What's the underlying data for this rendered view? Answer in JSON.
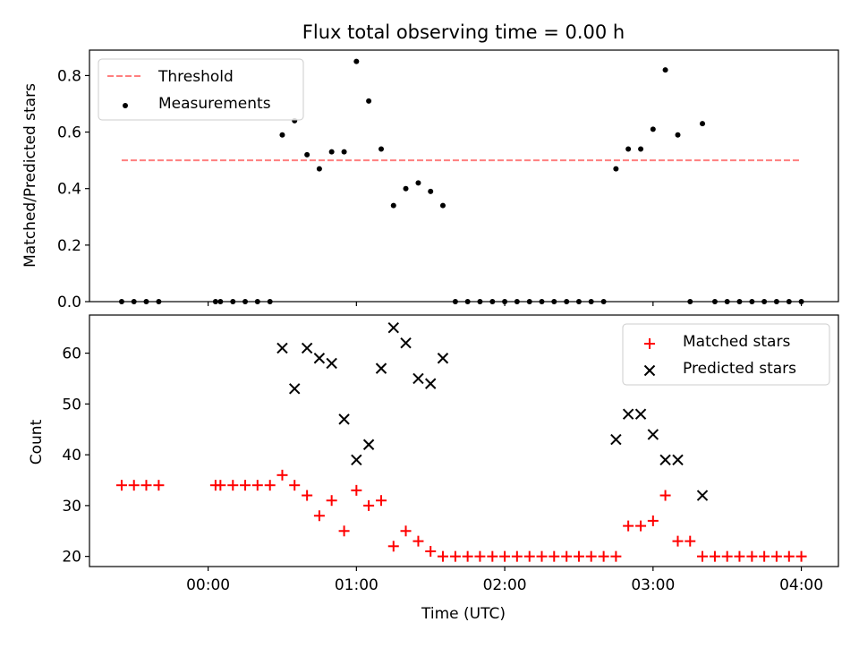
{
  "figure": {
    "title": "Flux total observing time = 0.00 h",
    "xlabel": "Time (UTC)",
    "x_ticks": [
      {
        "value": 0,
        "label": "00:00"
      },
      {
        "value": 1,
        "label": "01:00"
      },
      {
        "value": 2,
        "label": "02:00"
      },
      {
        "value": 3,
        "label": "03:00"
      },
      {
        "value": 4,
        "label": "04:00"
      }
    ],
    "xlim": [
      -0.8,
      4.25
    ]
  },
  "chart_data": [
    {
      "type": "scatter",
      "title": "Flux total observing time = 0.00 h",
      "xlabel": "",
      "ylabel": "Matched/Predicted stars",
      "ylim": [
        0,
        0.89
      ],
      "y_ticks": [
        {
          "value": 0,
          "label": "0.0"
        },
        {
          "value": 0.2,
          "label": "0.2"
        },
        {
          "value": 0.4,
          "label": "0.4"
        },
        {
          "value": 0.6,
          "label": "0.6"
        },
        {
          "value": 0.8,
          "label": "0.8"
        }
      ],
      "legend": {
        "placement": "upper-left"
      },
      "series": [
        {
          "name": "Threshold",
          "kind": "dashed-line",
          "color": "#ff7f7f",
          "x": [
            -0.583,
            4.0
          ],
          "y": [
            0.5,
            0.5
          ]
        },
        {
          "name": "Measurements",
          "kind": "dot",
          "color": "#000000",
          "x": [
            -0.583,
            -0.5,
            -0.417,
            -0.333,
            0.05,
            0.083,
            0.167,
            0.25,
            0.333,
            0.417,
            0.5,
            0.583,
            0.667,
            0.75,
            0.833,
            0.917,
            1.0,
            1.083,
            1.167,
            1.25,
            1.333,
            1.417,
            1.5,
            1.583,
            1.667,
            1.75,
            1.833,
            1.917,
            2.0,
            2.083,
            2.167,
            2.25,
            2.333,
            2.417,
            2.5,
            2.583,
            2.667,
            2.75,
            2.833,
            2.917,
            3.0,
            3.083,
            3.167,
            3.25,
            3.333,
            3.417,
            3.5,
            3.583,
            3.667,
            3.75,
            3.833,
            3.917,
            4.0
          ],
          "y": [
            0,
            0,
            0,
            0,
            0,
            0,
            0,
            0,
            0,
            0,
            0.59,
            0.64,
            0.52,
            0.47,
            0.53,
            0.53,
            0.85,
            0.71,
            0.54,
            0.34,
            0.4,
            0.42,
            0.39,
            0.34,
            0,
            0,
            0,
            0,
            0,
            0,
            0,
            0,
            0,
            0,
            0,
            0,
            0,
            0.47,
            0.54,
            0.54,
            0.61,
            0.82,
            0.59,
            0,
            0.63,
            0,
            0,
            0,
            0,
            0,
            0,
            0,
            0
          ]
        }
      ]
    },
    {
      "type": "scatter",
      "xlabel": "Time (UTC)",
      "ylabel": "Count",
      "ylim": [
        18,
        67.5
      ],
      "y_ticks": [
        {
          "value": 20,
          "label": "20"
        },
        {
          "value": 30,
          "label": "30"
        },
        {
          "value": 40,
          "label": "40"
        },
        {
          "value": 50,
          "label": "50"
        },
        {
          "value": 60,
          "label": "60"
        }
      ],
      "legend": {
        "placement": "upper-right"
      },
      "series": [
        {
          "name": "Matched stars",
          "kind": "plus",
          "color": "#ff0000",
          "x": [
            -0.583,
            -0.5,
            -0.417,
            -0.333,
            0.05,
            0.083,
            0.167,
            0.25,
            0.333,
            0.417,
            0.5,
            0.583,
            0.667,
            0.75,
            0.833,
            0.917,
            1.0,
            1.083,
            1.167,
            1.25,
            1.333,
            1.417,
            1.5,
            1.583,
            1.667,
            1.75,
            1.833,
            1.917,
            2.0,
            2.083,
            2.167,
            2.25,
            2.333,
            2.417,
            2.5,
            2.583,
            2.667,
            2.75,
            2.833,
            2.917,
            3.0,
            3.083,
            3.167,
            3.25,
            3.333,
            3.417,
            3.5,
            3.583,
            3.667,
            3.75,
            3.833,
            3.917,
            4.0
          ],
          "y": [
            34,
            34,
            34,
            34,
            34,
            34,
            34,
            34,
            34,
            34,
            36,
            34,
            32,
            28,
            31,
            25,
            33,
            30,
            31,
            22,
            25,
            23,
            21,
            20,
            20,
            20,
            20,
            20,
            20,
            20,
            20,
            20,
            20,
            20,
            20,
            20,
            20,
            20,
            26,
            26,
            27,
            32,
            23,
            23,
            20,
            20,
            20,
            20,
            20,
            20,
            20,
            20,
            20
          ]
        },
        {
          "name": "Predicted stars",
          "kind": "x",
          "color": "#000000",
          "x": [
            0.5,
            0.583,
            0.667,
            0.75,
            0.833,
            0.917,
            1.0,
            1.083,
            1.167,
            1.25,
            1.333,
            1.417,
            1.5,
            1.583,
            2.75,
            2.833,
            2.917,
            3.0,
            3.083,
            3.167,
            3.333
          ],
          "y": [
            61,
            53,
            61,
            59,
            58,
            47,
            39,
            42,
            57,
            65,
            62,
            55,
            54,
            59,
            43,
            48,
            48,
            44,
            39,
            39,
            32
          ]
        }
      ]
    }
  ]
}
